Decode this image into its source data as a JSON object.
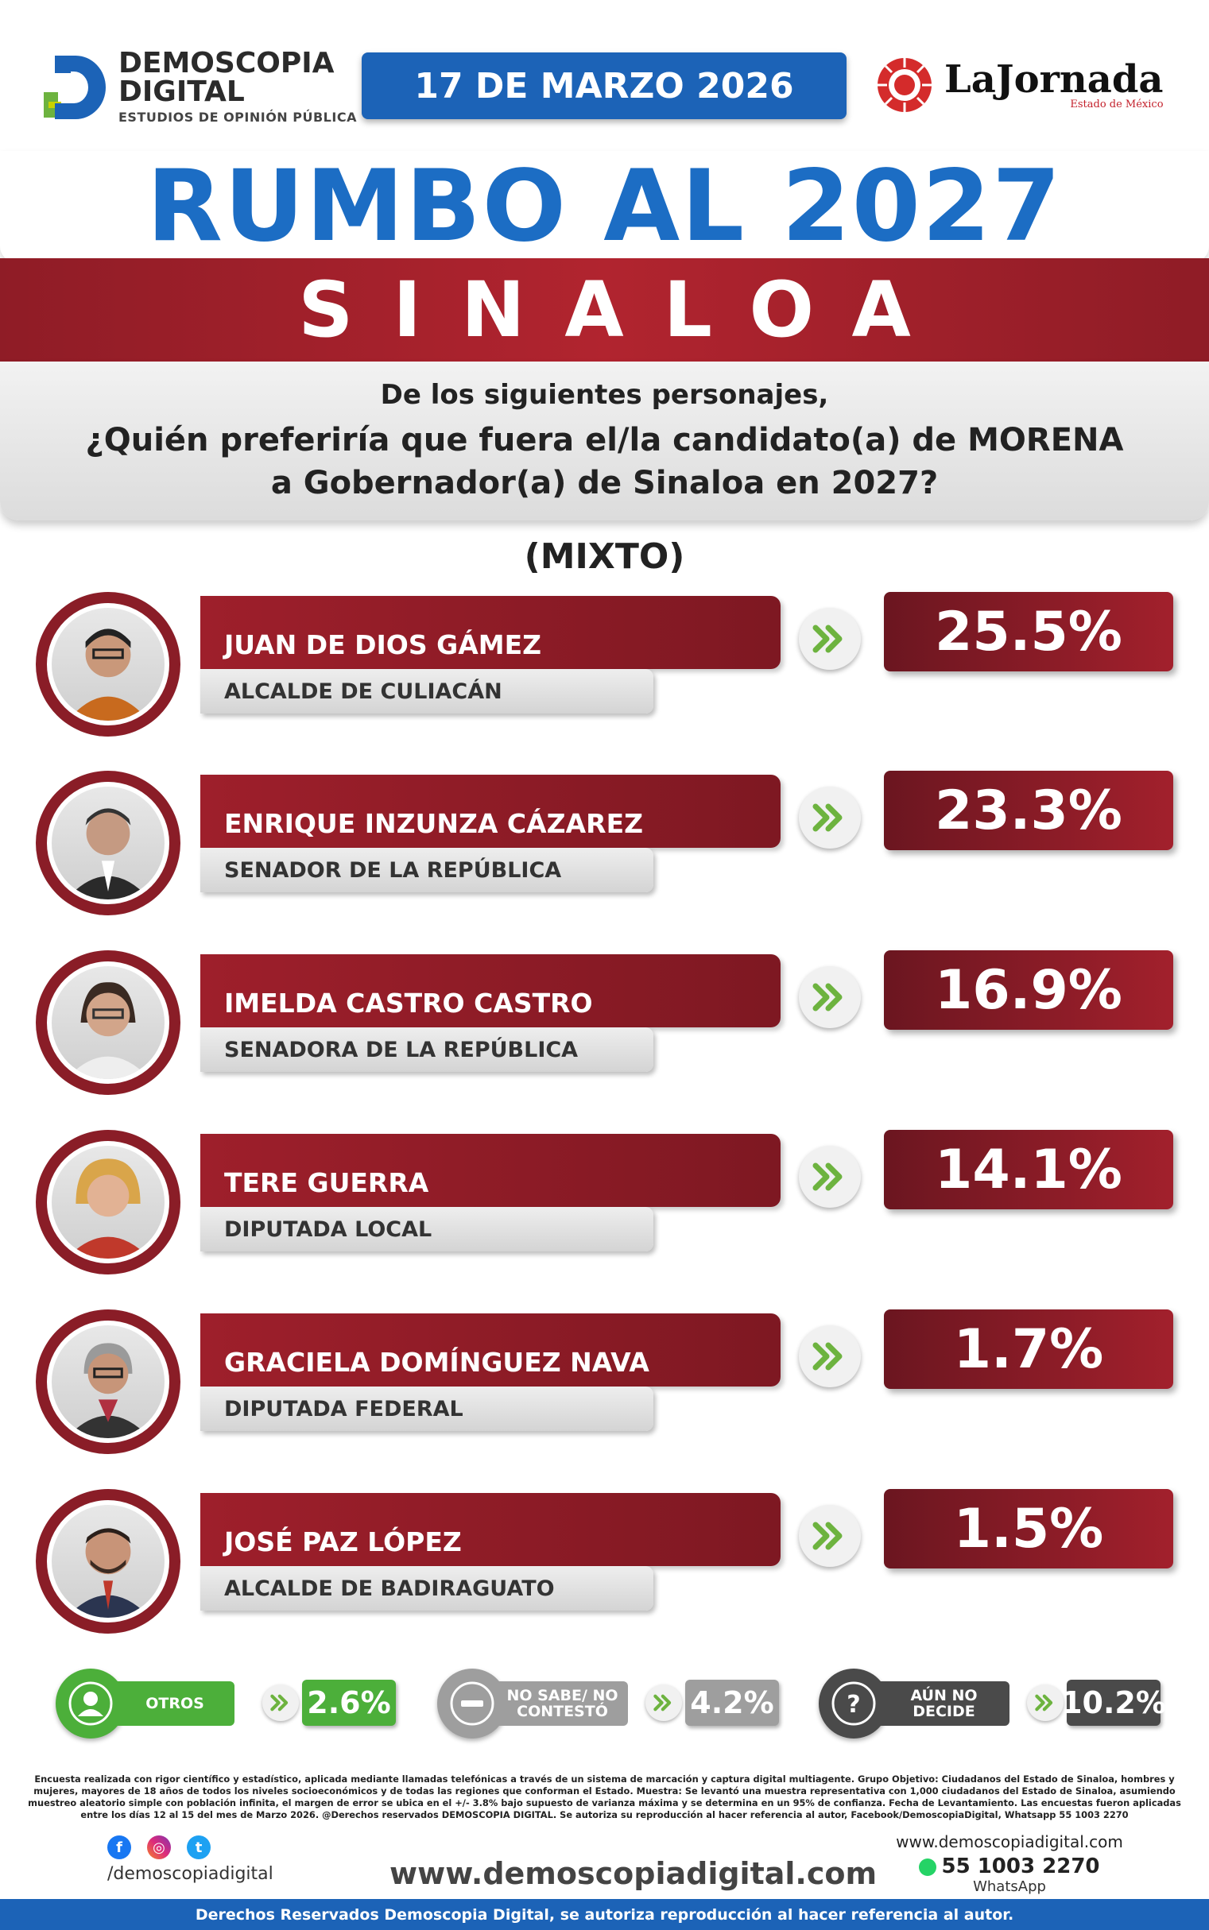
{
  "header": {
    "brand_line1": "DEMOSCOPIA",
    "brand_line2": "DIGITAL",
    "brand_tagline": "ESTUDIOS DE OPINIÓN PÚBLICA",
    "date": "17 DE MARZO 2026",
    "partner_name": "LaJornada",
    "partner_sub": "Estado de México"
  },
  "title": {
    "main": "RUMBO AL 2027",
    "state": "SINALOA"
  },
  "question": {
    "line1": "De los siguientes personajes,",
    "line2": "¿Quién preferiría que fuera el/la candidato(a) de MORENA",
    "line3": "a Gobernador(a) de Sinaloa en 2027?",
    "mode": "(MIXTO)"
  },
  "candidates": [
    {
      "name": "JUAN DE DIOS GÁMEZ",
      "role": "ALCALDE DE CULIACÁN",
      "pct": "25.5%"
    },
    {
      "name": "ENRIQUE INZUNZA CÁZAREZ",
      "role": "SENADOR DE LA REPÚBLICA",
      "pct": "23.3%"
    },
    {
      "name": "IMELDA CASTRO CASTRO",
      "role": "SENADORA DE LA REPÚBLICA",
      "pct": "16.9%"
    },
    {
      "name": "TERE GUERRA",
      "role": "DIPUTADA LOCAL",
      "pct": "14.1%"
    },
    {
      "name": "GRACIELA DOMÍNGUEZ NAVA",
      "role": "DIPUTADA FEDERAL",
      "pct": "1.7%"
    },
    {
      "name": "JOSÉ PAZ LÓPEZ",
      "role": "ALCALDE DE BADIRAGUATO",
      "pct": "1.5%"
    }
  ],
  "others": [
    {
      "label": "OTROS",
      "pct": "2.6%",
      "color": "#4caf3a"
    },
    {
      "label": "NO SABE/ NO CONTESTÓ",
      "pct": "4.2%",
      "color": "#9e9e9e"
    },
    {
      "label": "AÚN NO DECIDE",
      "pct": "10.2%",
      "color": "#4a4a4a"
    }
  ],
  "methodology": "Encuesta realizada con rigor científico y estadístico, aplicada mediante llamadas telefónicas a través de un sistema de marcación y captura digital multiagente. Grupo Objetivo: Ciudadanos del Estado de Sinaloa, hombres y mujeres, mayores de 18 años de todos los niveles socioeconómicos y de todas las regiones que conforman el Estado. Muestra: Se levantó una muestra representativa con 1,000 ciudadanos del Estado de Sinaloa, asumiendo muestreo aleatorio simple con población infinita, el margen de error se ubica en el +/- 3.8% bajo supuesto de varianza máxima y se determina en un 95% de confianza. Fecha de Levantamiento. Las encuestas fueron aplicadas entre los días 12 al 15 del mes de Marzo 2026. @Derechos reservados DEMOSCOPIA DIGITAL. Se autoriza su reproducción al hacer referencia al autor, Facebook/DemoscopiaDigital, Whatsapp 55 1003 2270",
  "footer": {
    "social_handle": "/demoscopiadigital",
    "website_big": "www.demoscopiadigital.com",
    "website_small": "www.demoscopiadigital.com",
    "phone": "55 1003 2270",
    "phone_label": "WhatsApp",
    "rights": "Derechos Reservados Demoscopia Digital, se autoriza reproducción al hacer referencia al autor."
  },
  "colors": {
    "blue": "#1c63b7",
    "red": "#9e1f2b",
    "green": "#4caf3a"
  }
}
